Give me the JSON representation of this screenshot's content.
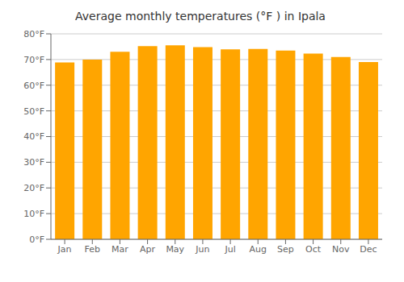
{
  "chart_data": {
    "type": "bar",
    "title": "Average monthly temperatures (°F ) in Ipala",
    "categories": [
      "Jan",
      "Feb",
      "Mar",
      "Apr",
      "May",
      "Jun",
      "Jul",
      "Aug",
      "Sep",
      "Oct",
      "Nov",
      "Dec"
    ],
    "values": [
      68.9,
      70.0,
      73.0,
      75.2,
      75.5,
      74.8,
      74.0,
      74.1,
      73.5,
      72.3,
      71.0,
      69.0
    ],
    "color": "#FFA500",
    "ylim": [
      0,
      80
    ],
    "yticks": [
      {
        "value": 0,
        "label": "0°F"
      },
      {
        "value": 10,
        "label": "10°F"
      },
      {
        "value": 20,
        "label": "20°F"
      },
      {
        "value": 30,
        "label": "30°F"
      },
      {
        "value": 40,
        "label": "40°F"
      },
      {
        "value": 50,
        "label": "50°F"
      },
      {
        "value": 60,
        "label": "60°F"
      },
      {
        "value": 70,
        "label": "70°F"
      },
      {
        "value": 80,
        "label": "80°F"
      }
    ],
    "grid": true
  }
}
